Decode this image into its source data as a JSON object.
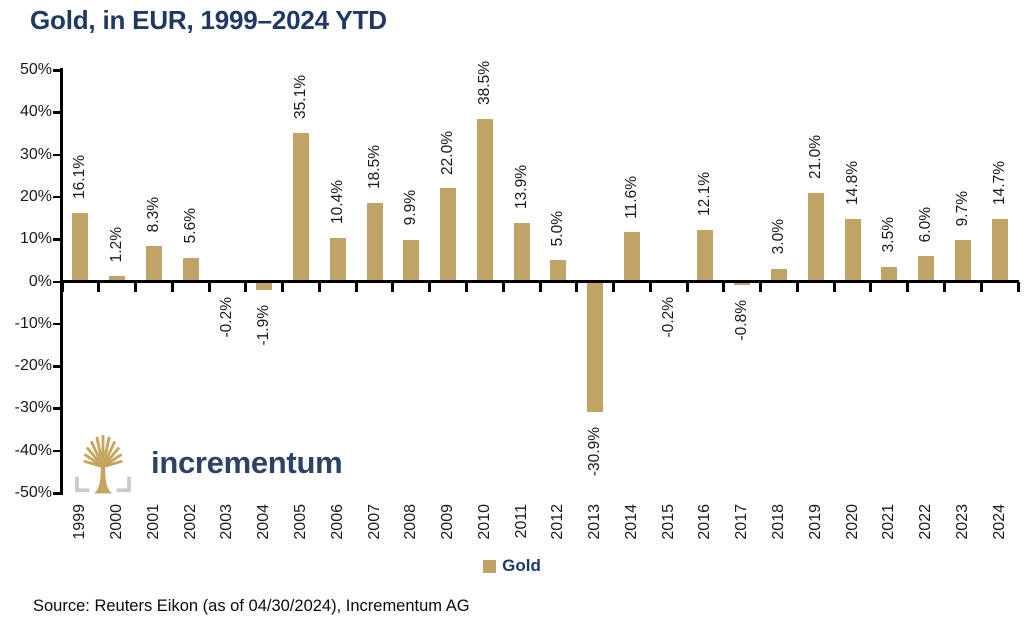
{
  "title": "Gold, in EUR, 1999–2024 YTD",
  "chart_data": {
    "type": "bar",
    "title": "Gold, in EUR, 1999–2024 YTD",
    "categories": [
      "1999",
      "2000",
      "2001",
      "2002",
      "2003",
      "2004",
      "2005",
      "2006",
      "2007",
      "2008",
      "2009",
      "2010",
      "2011",
      "2012",
      "2013",
      "2014",
      "2015",
      "2016",
      "2017",
      "2018",
      "2019",
      "2020",
      "2021",
      "2022",
      "2023",
      "2024"
    ],
    "series": [
      {
        "name": "Gold",
        "values": [
          16.1,
          1.2,
          8.3,
          5.6,
          -0.2,
          -1.9,
          35.1,
          10.4,
          18.5,
          9.9,
          22.0,
          38.5,
          13.9,
          5.0,
          -30.9,
          11.6,
          -0.2,
          12.1,
          -0.8,
          3.0,
          21.0,
          14.8,
          3.5,
          6.0,
          9.7,
          14.7
        ]
      }
    ],
    "ylim": [
      -50,
      50
    ],
    "ytick_step": 10,
    "ytick_suffix": "%",
    "ytick_labels": [
      "50%",
      "40%",
      "30%",
      "20%",
      "10%",
      "0%",
      "-10%",
      "-20%",
      "-30%",
      "-40%",
      "-50%"
    ],
    "data_label_format": "one_decimal_percent",
    "data_label_rotation": "vertical",
    "grid": false,
    "legend_position": "bottom",
    "bar_color": "#C0A366"
  },
  "legend": {
    "label": "Gold"
  },
  "logo": {
    "text": "incrementum"
  },
  "source": {
    "text": "Source: Reuters Eikon (as of 04/30/2024), Incrementum AG"
  },
  "colors": {
    "title": "#1F3864",
    "bar": "#C0A366",
    "legend_swatch": "#BFA265",
    "legend_text": "#1F3864",
    "logo_text": "#2E4167",
    "logo_gold": "#C6A55F",
    "logo_bracket": "#C9CACB",
    "axis": "#000000",
    "label_text": "#1a1a1a"
  }
}
